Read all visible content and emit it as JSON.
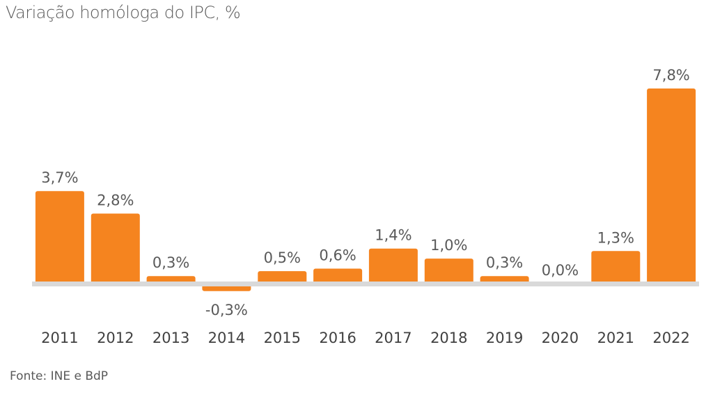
{
  "chart_data": {
    "type": "bar",
    "title": "Variação homóloga do IPC, %",
    "categories": [
      "2011",
      "2012",
      "2013",
      "2014",
      "2015",
      "2016",
      "2017",
      "2018",
      "2019",
      "2020",
      "2021",
      "2022"
    ],
    "values": [
      3.7,
      2.8,
      0.3,
      -0.3,
      0.5,
      0.6,
      1.4,
      1.0,
      0.3,
      0.0,
      1.3,
      7.8
    ],
    "value_labels": [
      "3,7%",
      "2,8%",
      "0,3%",
      "-0,3%",
      "0,5%",
      "0,6%",
      "1,4%",
      "1,0%",
      "0,3%",
      "0,0%",
      "1,3%",
      "7,8%"
    ],
    "bar_color": "#F5841F",
    "axis_color": "#D9D9D9",
    "source": "Fonte: INE e BdP",
    "grid": false,
    "legend": "none"
  }
}
